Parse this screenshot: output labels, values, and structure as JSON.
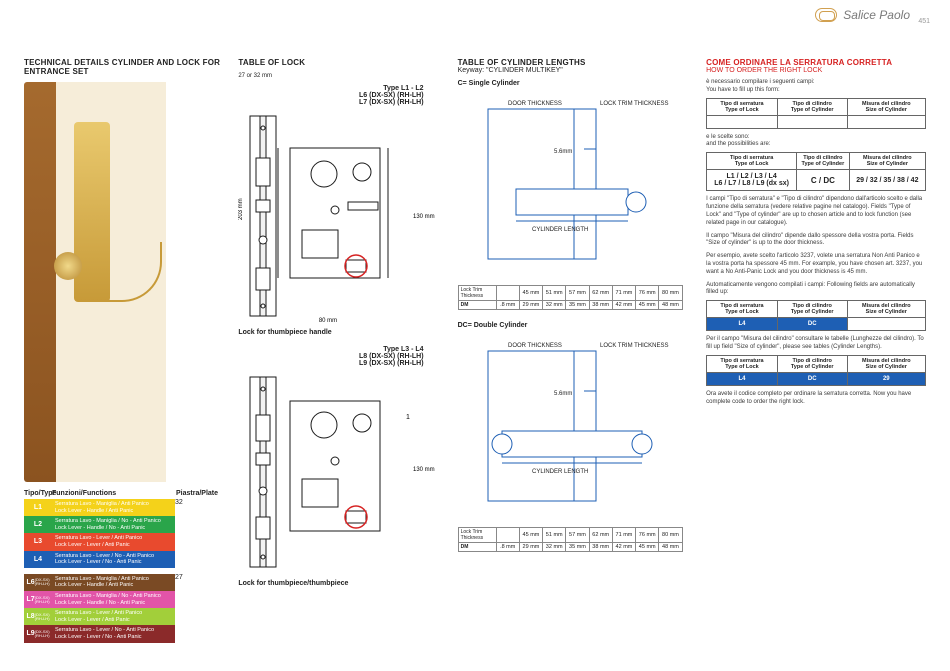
{
  "header": {
    "brand": "Salice Paolo",
    "page_number": "451"
  },
  "col1": {
    "title": "TECHNICAL DETAILS CYLINDER AND LOCK FOR ENTRANCE SET",
    "type_header": {
      "type": "Tipo/Type",
      "func": "Funzioni/Functions",
      "plate": "Piastra/Plate"
    },
    "rows_a": [
      {
        "code": "L1",
        "swatch": "#f4d21a",
        "desc_bg": "#f4d21a",
        "desc": "Serratura Lavo - Maniglia / Anti Panico\nLock Lever - Handle / Anti Panic"
      },
      {
        "code": "L2",
        "swatch": "#2aa54a",
        "desc_bg": "#2aa54a",
        "desc": "Serratura Lavo - Maniglia / No - Anti Panico\nLock Lever - Handle / No - Anti Panic"
      },
      {
        "code": "L3",
        "swatch": "#e84a2e",
        "desc_bg": "#e84a2e",
        "desc": "Serratura Lavo - Lever / Anti Panico\nLock Lever - Lever / Anti Panic"
      },
      {
        "code": "L4",
        "swatch": "#1e5fb4",
        "desc_bg": "#1e5fb4",
        "desc": "Serratura Lavo - Lever / No - Anti Panico\nLock Lever - Lever / No - Anti Panic"
      }
    ],
    "plate_a": "32",
    "rows_b": [
      {
        "code": "L6",
        "tag": "(DX-SX)\n(RH-LH)",
        "swatch": "#7a4a24",
        "desc_bg": "#7a4a24",
        "desc": "Serratura Lavo - Maniglia / Anti Panico\nLock Lever - Handle / Anti Panic"
      },
      {
        "code": "L7",
        "tag": "(DX-SX)\n(RH-LH)",
        "swatch": "#e254a8",
        "desc_bg": "#e254a8",
        "desc": "Serratura Lavo - Maniglia / No - Anti Panico\nLock Lever - Handle / No - Anti Panic"
      },
      {
        "code": "L8",
        "tag": "(DX-SX)\n(RH-LH)",
        "swatch": "#a2cf3a",
        "desc_bg": "#a2cf3a",
        "desc": "Serratura Lavo - Lever / Anti Panico\nLock Lever - Lever / Anti Panic"
      },
      {
        "code": "L9",
        "tag": "(DX-SX)\n(RH-LH)",
        "swatch": "#8b2a2a",
        "desc_bg": "#8b2a2a",
        "desc": "Serratura Lavo - Lever / No - Anti Panico\nLock Lever - Lever / No - Anti Panic"
      }
    ],
    "plate_b": "27"
  },
  "col2": {
    "title": "TABLE OF LOCK",
    "dim_top": "27 or 32 mm",
    "block1": {
      "type": "Type L1 - L2",
      "l1": "L6 (DX-SX)  (RH-LH)",
      "l2": "L7 (DX-SX)  (RH-LH)",
      "h": "130 mm",
      "w": "80 mm",
      "body_h": "203 mm",
      "caption": "Lock for thumbpiece handle"
    },
    "block2": {
      "type": "Type L3 - L4",
      "l1": "L8 (DX-SX)  (RH-LH)",
      "l2": "L9 (DX-SX)  (RH-LH)",
      "h": "130 mm",
      "caption": "Lock for thumbpiece/thumbpiece"
    },
    "diagram": {
      "plate_fill": "#ffffff",
      "stroke": "#1a1a1a",
      "accent": "#d62222",
      "face_w": 26,
      "face_h": 200,
      "body_w": 70,
      "body_h": 130
    }
  },
  "col3": {
    "title": "TABLE OF CYLINDER LENGTHS",
    "keyway": "Keyway: \"CYLINDER MULTIKEY\"",
    "c_label": "C= Single Cylinder",
    "dc_label": "DC= Double Cylinder",
    "door_label": "DOOR THICKNESS",
    "trim_label": "LOCK TRIM THICKNESS",
    "dim_56": "5.6mm",
    "cyl_len": "CYLINDER LENGTH",
    "tbl_row1_label": "Lock Trim Thickness",
    "tbl_row2_label": "DM",
    "dtlabel": "Door Thickness",
    "row1": [
      "45 mm",
      "51 mm",
      "57 mm",
      "62 mm",
      "71 mm",
      "76 mm",
      "80 mm"
    ],
    "row2": [
      ".8 mm",
      "29 mm",
      "32 mm",
      "35 mm",
      "38 mm",
      "42 mm",
      "45 mm",
      "48 mm"
    ],
    "diagram": {
      "stroke": "#1e5fb4",
      "fill": "#ffffff"
    }
  },
  "col4": {
    "title_it": "COME ORDINARE LA SERRATURA CORRETTA",
    "title_en": "HOW TO ORDER THE RIGHT LOCK",
    "p1_it": "è necessario compilare i seguenti campi:",
    "p1_en": "You have to fill up this form:",
    "headers": {
      "lock": "Tipo di serratura\nType of Lock",
      "cyl": "Tipo di cilindro\nType of Cylinder",
      "size": "Misura del cilindro\nSize of Cylinder"
    },
    "p2_it": "e le scelte sono:",
    "p2_en": "and the possibilities are:",
    "opts": {
      "lock": "L1 / L2 / L3 / L4\nL6 / L7 / L8 / L9 (dx sx)",
      "cyl": "C / DC",
      "size": "29 / 32 / 35 / 38 / 42"
    },
    "p3": "I campi \"Tipo di serratura\" e \"Tipo di cilindro\" dipendono dall'articolo scelto e dalla funzione della serratura (vedere relative pagine nel catalogo). Fields \"Type of Lock\" and \"Type of cylinder\" are up to chosen article and to lock function (see related page in our catalogue).",
    "p4": "Il campo \"Misura del cilindro\" dipende dallo spessore della vostra porta. Fields \"Size of cylinder\" is up to the door thickness.",
    "p5": "Per esempio, avete scelto l'articolo 3237, volete una serratura Non Anti Panico e la vostra porta ha spessore 45 mm. For example, you have chosen art. 3237, you want a No Anti-Panic Lock and you door thickness is 45 mm.",
    "p6": "Automaticamente vengono compilati i campi: Following fields are automatically filled up:",
    "auto": {
      "lock": "L4",
      "cyl": "DC",
      "size": ""
    },
    "p7": "Per il campo \"Misura del cilindro\" consultare le tabelle (Lunghezze del cilindro). To fill up field \"Size of cylinder\", please see tables (Cylinder Lengths).",
    "final": {
      "lock": "L4",
      "cyl": "DC",
      "size": "29"
    },
    "p8": "Ora avete il codice completo per ordinare la serratura corretta. Now you have complete code to order the right lock."
  }
}
